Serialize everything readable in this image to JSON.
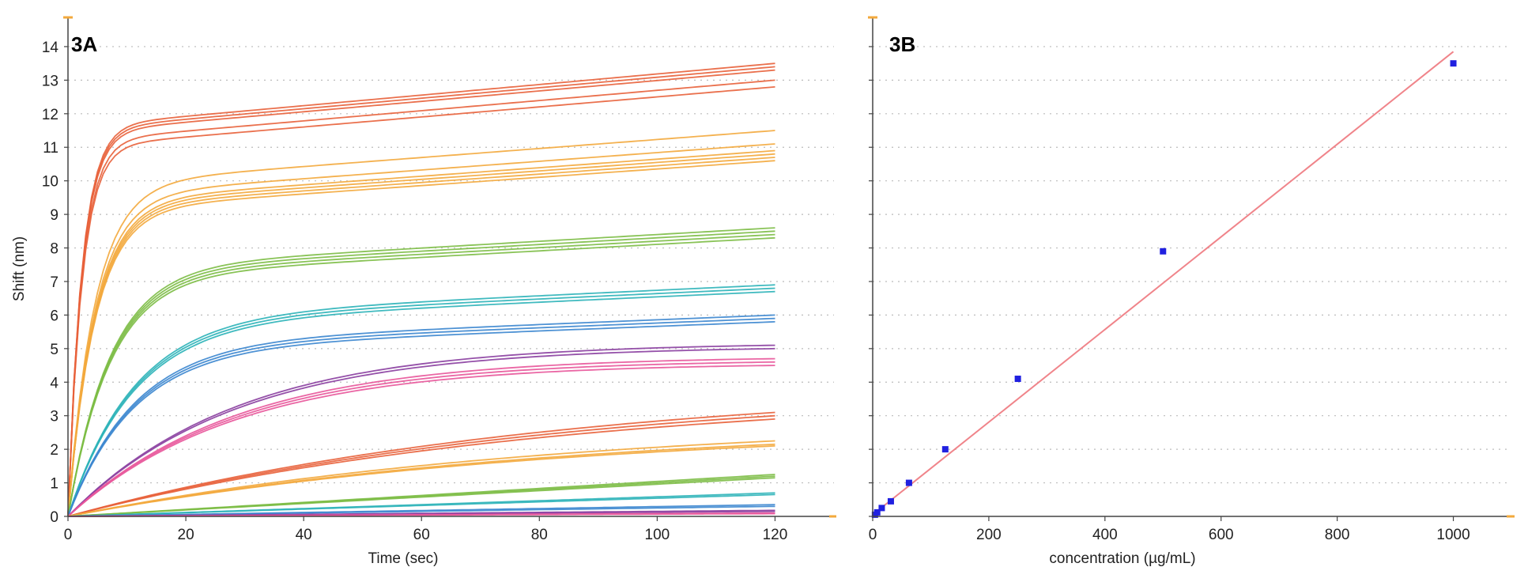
{
  "chart_data": [
    {
      "panel_label": "3A",
      "type": "line",
      "xlabel": "Time (sec)",
      "ylabel": "Shift (nm)",
      "xlim": [
        0,
        130
      ],
      "ylim": [
        0,
        14.8
      ],
      "x_ticks": [
        0,
        20,
        40,
        60,
        80,
        100,
        120
      ],
      "y_ticks": [
        0,
        1,
        2,
        3,
        4,
        5,
        6,
        7,
        8,
        9,
        10,
        11,
        12,
        13,
        14
      ],
      "grid": "horizontal dotted",
      "x_range_of_traces": [
        0,
        120
      ],
      "series": [
        {
          "color": "#e8603a",
          "values_at_120s": [
            13.5,
            13.4,
            13.3,
            13.0,
            12.8
          ]
        },
        {
          "color": "#f3a93c",
          "values_at_120s": [
            11.5,
            11.1,
            10.9,
            10.8,
            10.7,
            10.6
          ]
        },
        {
          "color": "#7cbd45",
          "values_at_120s": [
            8.6,
            8.5,
            8.4,
            8.3
          ]
        },
        {
          "color": "#2bb3b8",
          "values_at_120s": [
            6.9,
            6.8,
            6.7
          ]
        },
        {
          "color": "#3b86cf",
          "values_at_120s": [
            6.0,
            5.9,
            5.8
          ]
        },
        {
          "color": "#8a3ea0",
          "values_at_120s": [
            5.1,
            5.0
          ]
        },
        {
          "color": "#e8559a",
          "values_at_120s": [
            4.7,
            4.6,
            4.5
          ]
        },
        {
          "color": "#e8603a",
          "values_at_120s": [
            3.1,
            3.0,
            2.9
          ]
        },
        {
          "color": "#f3a93c",
          "values_at_120s": [
            2.25,
            2.15,
            2.1
          ]
        },
        {
          "color": "#7cbd45",
          "values_at_120s": [
            1.25,
            1.2,
            1.15
          ]
        },
        {
          "color": "#2bb3b8",
          "values_at_120s": [
            0.7,
            0.65
          ]
        },
        {
          "color": "#3b86cf",
          "values_at_120s": [
            0.35,
            0.3
          ]
        },
        {
          "color": "#8a3ea0",
          "values_at_120s": [
            0.18,
            0.15
          ]
        },
        {
          "color": "#e8559a",
          "values_at_120s": [
            0.1,
            0.08
          ]
        }
      ]
    },
    {
      "panel_label": "3B",
      "type": "scatter",
      "xlabel": "concentration (µg/mL)",
      "ylabel": "",
      "xlim": [
        0,
        1100
      ],
      "ylim": [
        0,
        14.8
      ],
      "x_ticks": [
        0,
        200,
        400,
        600,
        800,
        1000
      ],
      "grid": "horizontal dotted",
      "points": [
        {
          "x": 1000,
          "y": 13.5
        },
        {
          "x": 500,
          "y": 7.9
        },
        {
          "x": 250,
          "y": 4.1
        },
        {
          "x": 125,
          "y": 2.0
        },
        {
          "x": 62.5,
          "y": 1.0
        },
        {
          "x": 31.25,
          "y": 0.45
        },
        {
          "x": 15.6,
          "y": 0.25
        },
        {
          "x": 7.8,
          "y": 0.12
        },
        {
          "x": 3.9,
          "y": 0.05
        }
      ],
      "fit_line": {
        "x": [
          0,
          1000
        ],
        "y": [
          0.05,
          13.85
        ],
        "color": "#f0848a"
      },
      "point_color": "#2020e0"
    }
  ]
}
